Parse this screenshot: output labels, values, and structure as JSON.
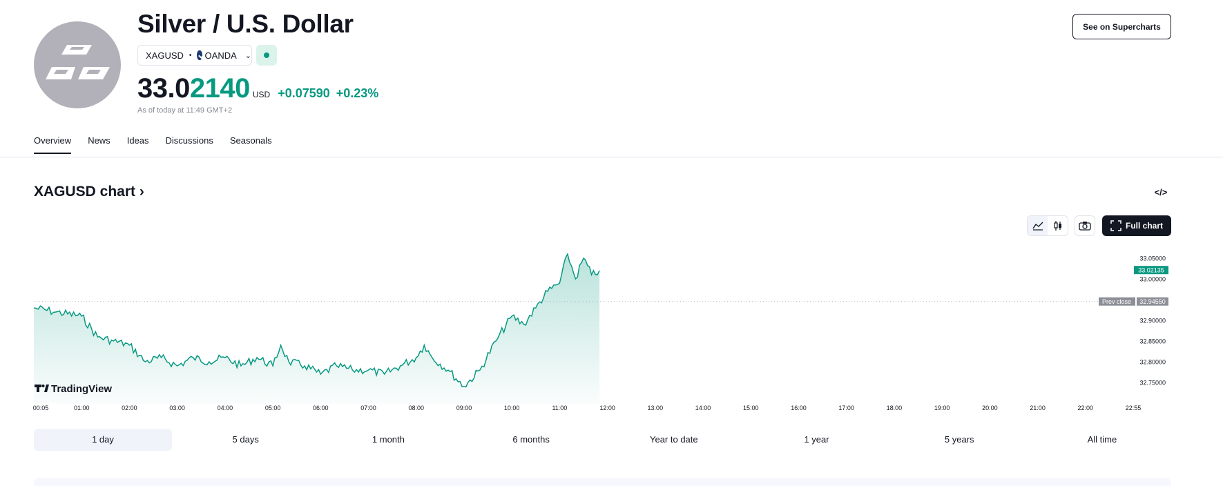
{
  "header": {
    "title": "Silver / U.S. Dollar",
    "symbol": "XAGUSD",
    "exchange": "OANDA",
    "price_main": "33.0",
    "price_highlight": "2140",
    "currency": "USD",
    "change": "+0.07590",
    "change_pct": "+0.23%",
    "as_of": "As of today at 11:49 GMT+2",
    "supercharts_label": "See on Supercharts"
  },
  "tabs": [
    {
      "label": "Overview",
      "active": true
    },
    {
      "label": "News"
    },
    {
      "label": "Ideas"
    },
    {
      "label": "Discussions"
    },
    {
      "label": "Seasonals"
    }
  ],
  "chart_section": {
    "title": "XAGUSD chart ›",
    "full_chart_label": "Full chart",
    "watermark": "TradingView"
  },
  "ranges": [
    {
      "label": "1 day",
      "active": true
    },
    {
      "label": "5 days"
    },
    {
      "label": "1 month"
    },
    {
      "label": "6 months"
    },
    {
      "label": "Year to date"
    },
    {
      "label": "1 year"
    },
    {
      "label": "5 years"
    },
    {
      "label": "All time"
    }
  ],
  "colors": {
    "accent": "#089981",
    "text": "#131722",
    "muted": "#868993",
    "prev_close_badge": "#8c8f97"
  },
  "chart_data": {
    "type": "area",
    "x_tick_labels": [
      "00:05",
      "01:00",
      "02:00",
      "03:00",
      "04:00",
      "05:00",
      "06:00",
      "07:00",
      "08:00",
      "09:00",
      "10:00",
      "11:00",
      "12:00",
      "13:00",
      "14:00",
      "15:00",
      "16:00",
      "17:00",
      "18:00",
      "19:00",
      "20:00",
      "21:00",
      "22:00",
      "22:55"
    ],
    "y_tick_labels": [
      "33.05000",
      "33.00000",
      "32.90000",
      "32.85000",
      "32.80000",
      "32.75000"
    ],
    "ylim": [
      32.715,
      33.09
    ],
    "last_value": 33.02135,
    "last_label": "33.02135",
    "prev_close": 32.9455,
    "prev_close_label": "Prev close",
    "prev_close_value_label": "32.94550",
    "series": [
      {
        "x": [
          "00:05",
          "00:30",
          "01:00",
          "01:20",
          "01:40",
          "02:00",
          "02:20",
          "02:40",
          "03:00",
          "03:20",
          "03:40",
          "04:00",
          "04:20",
          "04:40",
          "05:00",
          "05:10",
          "05:20",
          "05:40",
          "06:00",
          "06:20",
          "06:40",
          "07:00",
          "07:20",
          "07:40",
          "08:00",
          "08:10",
          "08:20",
          "08:40",
          "09:00",
          "09:20",
          "09:40",
          "10:00",
          "10:15",
          "10:30",
          "10:45",
          "11:00",
          "11:10",
          "11:20",
          "11:30",
          "11:40",
          "11:50"
        ],
        "values": [
          32.93,
          32.92,
          32.91,
          32.86,
          32.85,
          32.84,
          32.8,
          32.81,
          32.79,
          32.81,
          32.8,
          32.81,
          32.79,
          32.81,
          32.79,
          32.84,
          32.8,
          32.79,
          32.77,
          32.79,
          32.78,
          32.78,
          32.77,
          32.79,
          32.81,
          32.84,
          32.81,
          32.78,
          32.74,
          32.78,
          32.85,
          32.91,
          32.89,
          32.93,
          32.97,
          32.99,
          33.06,
          33.0,
          33.05,
          33.01,
          33.02
        ]
      }
    ]
  }
}
